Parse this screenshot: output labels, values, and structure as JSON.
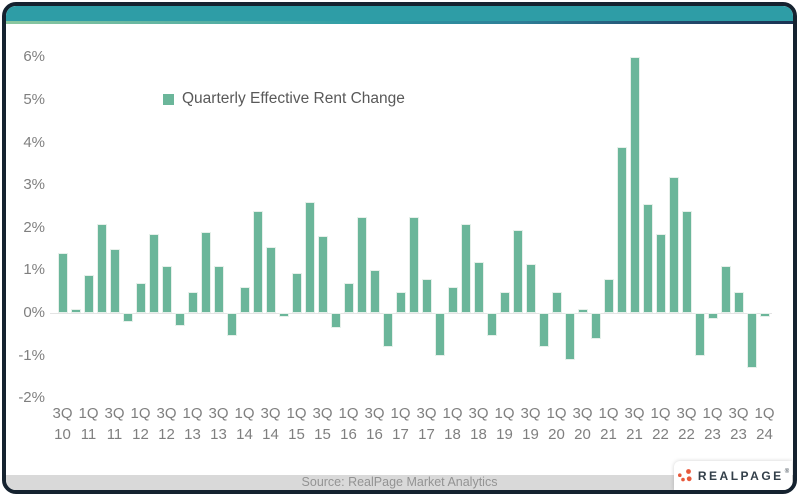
{
  "header": {
    "bar_color": "#2E9DA6",
    "gradient_left": "#8BC79F",
    "gradient_mid": "#2E9DA6",
    "gradient_right": "#1B3353",
    "frame_color": "#15222F"
  },
  "legend": {
    "label": "Quarterly Effective Rent Change",
    "swatch_color": "#6BB69A"
  },
  "footer": {
    "source": "Source: RealPage Market Analytics",
    "logo_text": "REALPAGE",
    "logo_reg": "®",
    "logo_dot_color": "#E8593B",
    "strip_color": "#D9D9D9"
  },
  "chart_data": {
    "type": "bar",
    "title": "",
    "legend_entries": [
      "Quarterly Effective Rent Change"
    ],
    "legend_position": "top-left-inside",
    "grid": false,
    "bar_color": "#6BB69A",
    "axis_text_color": "#7F7F7F",
    "ylim": [
      -2,
      6
    ],
    "ylabel": "",
    "xlabel": "",
    "yticks": [
      "6%",
      "5%",
      "4%",
      "3%",
      "2%",
      "1%",
      "0%",
      "-1%",
      "-2%"
    ],
    "categories": [
      "3Q10",
      "4Q10",
      "1Q11",
      "2Q11",
      "3Q11",
      "4Q11",
      "1Q12",
      "2Q12",
      "3Q12",
      "4Q12",
      "1Q13",
      "2Q13",
      "3Q13",
      "4Q13",
      "1Q14",
      "2Q14",
      "3Q14",
      "4Q14",
      "1Q15",
      "2Q15",
      "3Q15",
      "4Q15",
      "1Q16",
      "2Q16",
      "3Q16",
      "4Q16",
      "1Q17",
      "2Q17",
      "3Q17",
      "4Q17",
      "1Q18",
      "2Q18",
      "3Q18",
      "4Q18",
      "1Q19",
      "2Q19",
      "3Q19",
      "4Q19",
      "1Q20",
      "2Q20",
      "3Q20",
      "4Q20",
      "1Q21",
      "2Q21",
      "3Q21",
      "4Q21",
      "1Q22",
      "2Q22",
      "3Q22",
      "4Q22",
      "1Q23",
      "2Q23",
      "3Q23",
      "4Q23",
      "1Q24"
    ],
    "values": [
      1.4,
      0.1,
      0.9,
      2.1,
      1.5,
      -0.2,
      0.7,
      1.85,
      1.1,
      -0.3,
      0.5,
      1.9,
      1.1,
      -0.55,
      0.6,
      2.4,
      1.55,
      -0.1,
      0.95,
      2.6,
      1.8,
      -0.35,
      0.7,
      2.25,
      1.0,
      -0.8,
      0.5,
      2.25,
      0.8,
      -1.0,
      0.6,
      2.1,
      1.2,
      -0.55,
      0.5,
      1.95,
      1.15,
      -0.8,
      0.5,
      -1.1,
      0.1,
      -0.6,
      0.8,
      3.9,
      6.0,
      2.55,
      1.85,
      3.2,
      2.4,
      -1.0,
      -0.15,
      1.1,
      0.5,
      -1.3,
      -0.1
    ],
    "xticks": [
      {
        "q": "3Q",
        "y": "10"
      },
      {
        "q": "1Q",
        "y": "11"
      },
      {
        "q": "3Q",
        "y": "11"
      },
      {
        "q": "1Q",
        "y": "12"
      },
      {
        "q": "3Q",
        "y": "12"
      },
      {
        "q": "1Q",
        "y": "13"
      },
      {
        "q": "3Q",
        "y": "13"
      },
      {
        "q": "1Q",
        "y": "14"
      },
      {
        "q": "3Q",
        "y": "14"
      },
      {
        "q": "1Q",
        "y": "15"
      },
      {
        "q": "3Q",
        "y": "15"
      },
      {
        "q": "1Q",
        "y": "16"
      },
      {
        "q": "3Q",
        "y": "16"
      },
      {
        "q": "1Q",
        "y": "17"
      },
      {
        "q": "3Q",
        "y": "17"
      },
      {
        "q": "1Q",
        "y": "18"
      },
      {
        "q": "3Q",
        "y": "18"
      },
      {
        "q": "1Q",
        "y": "19"
      },
      {
        "q": "3Q",
        "y": "19"
      },
      {
        "q": "1Q",
        "y": "20"
      },
      {
        "q": "3Q",
        "y": "20"
      },
      {
        "q": "1Q",
        "y": "21"
      },
      {
        "q": "3Q",
        "y": "21"
      },
      {
        "q": "1Q",
        "y": "22"
      },
      {
        "q": "3Q",
        "y": "22"
      },
      {
        "q": "1Q",
        "y": "23"
      },
      {
        "q": "3Q",
        "y": "23"
      },
      {
        "q": "1Q",
        "y": "24"
      }
    ]
  }
}
